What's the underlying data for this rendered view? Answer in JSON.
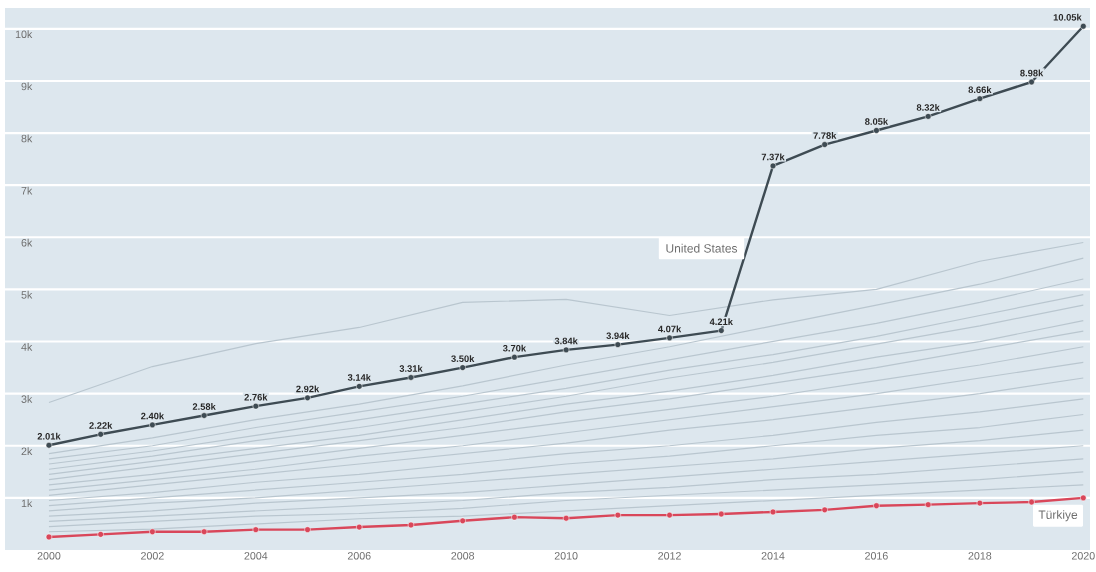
{
  "chart_data": {
    "type": "line",
    "xlim": [
      1999.15,
      2020.13
    ],
    "ylim": [
      0,
      10400
    ],
    "xticks": [
      2000,
      2002,
      2004,
      2006,
      2008,
      2010,
      2012,
      2014,
      2016,
      2018,
      2020
    ],
    "yticks": [
      {
        "value": 1000,
        "label": "1k"
      },
      {
        "value": 2000,
        "label": "2k"
      },
      {
        "value": 3000,
        "label": "3k"
      },
      {
        "value": 4000,
        "label": "4k"
      },
      {
        "value": 5000,
        "label": "5k"
      },
      {
        "value": 6000,
        "label": "6k"
      },
      {
        "value": 7000,
        "label": "7k"
      },
      {
        "value": 8000,
        "label": "8k"
      },
      {
        "value": 9000,
        "label": "9k"
      },
      {
        "value": 10000,
        "label": "10k"
      }
    ],
    "grid": "y",
    "series": [
      {
        "color": "#b9c6cf",
        "x": [
          2000,
          2002,
          2004,
          2006,
          2008,
          2010,
          2012,
          2014,
          2016,
          2018,
          2020
        ],
        "values": [
          2830,
          3520,
          3960,
          4270,
          4750,
          4810,
          4500,
          4800,
          5000,
          5540,
          5900
        ]
      },
      {
        "color": "#b9c6cf",
        "x": [
          2000,
          2002,
          2004,
          2006,
          2008,
          2010,
          2012,
          2014,
          2016,
          2018,
          2020
        ],
        "values": [
          1850,
          2150,
          2500,
          2800,
          3150,
          3550,
          3900,
          4300,
          4700,
          5100,
          5600
        ]
      },
      {
        "color": "#b9c6cf",
        "x": [
          2000,
          2002,
          2004,
          2006,
          2008,
          2010,
          2012,
          2014,
          2016,
          2018,
          2020
        ],
        "values": [
          1750,
          2000,
          2350,
          2650,
          2950,
          3300,
          3650,
          4000,
          4350,
          4750,
          5200
        ]
      },
      {
        "color": "#b9c6cf",
        "x": [
          2000,
          2002,
          2004,
          2006,
          2008,
          2010,
          2012,
          2014,
          2016,
          2018,
          2020
        ],
        "values": [
          1650,
          1900,
          2200,
          2500,
          2800,
          3100,
          3450,
          3750,
          4100,
          4500,
          4900
        ]
      },
      {
        "color": "#b9c6cf",
        "x": [
          2000,
          2002,
          2004,
          2006,
          2008,
          2010,
          2012,
          2014,
          2016,
          2018,
          2020
        ],
        "values": [
          1550,
          1800,
          2100,
          2350,
          2650,
          2950,
          3300,
          3600,
          3950,
          4300,
          4700
        ]
      },
      {
        "color": "#b9c6cf",
        "x": [
          2000,
          2002,
          2004,
          2006,
          2008,
          2010,
          2012,
          2014,
          2016,
          2018,
          2020
        ],
        "values": [
          1450,
          1700,
          1950,
          2200,
          2500,
          2800,
          3050,
          3350,
          3700,
          4000,
          4400
        ]
      },
      {
        "color": "#b9c6cf",
        "x": [
          2000,
          2002,
          2004,
          2006,
          2008,
          2010,
          2012,
          2014,
          2016,
          2018,
          2020
        ],
        "values": [
          1350,
          1600,
          1850,
          2100,
          2350,
          2650,
          2900,
          3200,
          3500,
          3850,
          4200
        ]
      },
      {
        "color": "#b9c6cf",
        "x": [
          2000,
          2002,
          2004,
          2006,
          2008,
          2010,
          2012,
          2014,
          2016,
          2018,
          2020
        ],
        "values": [
          1250,
          1450,
          1700,
          1950,
          2200,
          2450,
          2700,
          2950,
          3250,
          3550,
          3900
        ]
      },
      {
        "color": "#b9c6cf",
        "x": [
          2000,
          2002,
          2004,
          2006,
          2008,
          2010,
          2012,
          2014,
          2016,
          2018,
          2020
        ],
        "values": [
          1150,
          1350,
          1550,
          1800,
          2000,
          2250,
          2500,
          2750,
          3000,
          3300,
          3600
        ]
      },
      {
        "color": "#b9c6cf",
        "x": [
          2000,
          2002,
          2004,
          2006,
          2008,
          2010,
          2012,
          2014,
          2016,
          2018,
          2020
        ],
        "values": [
          1050,
          1250,
          1450,
          1650,
          1850,
          2050,
          2300,
          2500,
          2750,
          3000,
          3300
        ]
      },
      {
        "color": "#b9c6cf",
        "x": [
          2000,
          2002,
          2004,
          2006,
          2008,
          2010,
          2012,
          2014,
          2016,
          2018,
          2020
        ],
        "values": [
          950,
          1100,
          1300,
          1450,
          1650,
          1850,
          2000,
          2200,
          2450,
          2650,
          2900
        ]
      },
      {
        "color": "#b9c6cf",
        "x": [
          2000,
          2002,
          2004,
          2006,
          2008,
          2010,
          2012,
          2014,
          2016,
          2018,
          2020
        ],
        "values": [
          850,
          1000,
          1150,
          1300,
          1450,
          1650,
          1800,
          2000,
          2200,
          2350,
          2600
        ]
      },
      {
        "color": "#b9c6cf",
        "x": [
          2000,
          2002,
          2004,
          2006,
          2008,
          2010,
          2012,
          2014,
          2016,
          2018,
          2020
        ],
        "values": [
          750,
          900,
          1000,
          1150,
          1300,
          1450,
          1600,
          1750,
          1950,
          2100,
          2300
        ]
      },
      {
        "color": "#b9c6cf",
        "x": [
          2000,
          2002,
          2004,
          2006,
          2008,
          2010,
          2012,
          2014,
          2016,
          2018,
          2020
        ],
        "values": [
          650,
          750,
          900,
          1000,
          1100,
          1250,
          1400,
          1550,
          1700,
          1850,
          2000
        ]
      },
      {
        "color": "#b9c6cf",
        "x": [
          2000,
          2002,
          2004,
          2006,
          2008,
          2010,
          2012,
          2014,
          2016,
          2018,
          2020
        ],
        "values": [
          550,
          650,
          750,
          850,
          950,
          1100,
          1200,
          1350,
          1450,
          1600,
          1750
        ]
      },
      {
        "color": "#b9c6cf",
        "x": [
          2000,
          2002,
          2004,
          2006,
          2008,
          2010,
          2012,
          2014,
          2016,
          2018,
          2020
        ],
        "values": [
          450,
          550,
          650,
          700,
          800,
          950,
          1050,
          1150,
          1250,
          1350,
          1500
        ]
      },
      {
        "color": "#b9c6cf",
        "x": [
          2000,
          2002,
          2004,
          2006,
          2008,
          2010,
          2012,
          2014,
          2016,
          2018,
          2020
        ],
        "values": [
          350,
          400,
          500,
          600,
          650,
          750,
          850,
          950,
          1050,
          1150,
          1250
        ]
      },
      {
        "name": "United States",
        "color": "#3e4b53",
        "marker": "circle",
        "x": [
          2000,
          2001,
          2002,
          2003,
          2004,
          2005,
          2006,
          2007,
          2008,
          2009,
          2010,
          2011,
          2012,
          2013,
          2014,
          2015,
          2016,
          2017,
          2018,
          2019,
          2020
        ],
        "values": [
          2010,
          2220,
          2400,
          2580,
          2760,
          2920,
          3140,
          3310,
          3500,
          3700,
          3840,
          3940,
          4070,
          4210,
          7370,
          7780,
          8050,
          8320,
          8660,
          8980,
          10050
        ],
        "value_labels": [
          "2.01k",
          "2.22k",
          "2.40k",
          "2.58k",
          "2.76k",
          "2.92k",
          "3.14k",
          "3.31k",
          "3.50k",
          "3.70k",
          "3.84k",
          "3.94k",
          "4.07k",
          "4.21k",
          "7.37k",
          "7.78k",
          "8.05k",
          "8.32k",
          "8.66k",
          "8.98k",
          "10.05k"
        ]
      },
      {
        "name": "Türkiye",
        "color": "#d9475a",
        "marker": "circle",
        "x": [
          2000,
          2001,
          2002,
          2003,
          2004,
          2005,
          2006,
          2007,
          2008,
          2009,
          2010,
          2011,
          2012,
          2013,
          2014,
          2015,
          2016,
          2017,
          2018,
          2019,
          2020
        ],
        "values": [
          250,
          300,
          350,
          350,
          390,
          390,
          440,
          480,
          560,
          630,
          610,
          670,
          670,
          690,
          730,
          770,
          850,
          870,
          900,
          920,
          1000
        ]
      }
    ]
  }
}
